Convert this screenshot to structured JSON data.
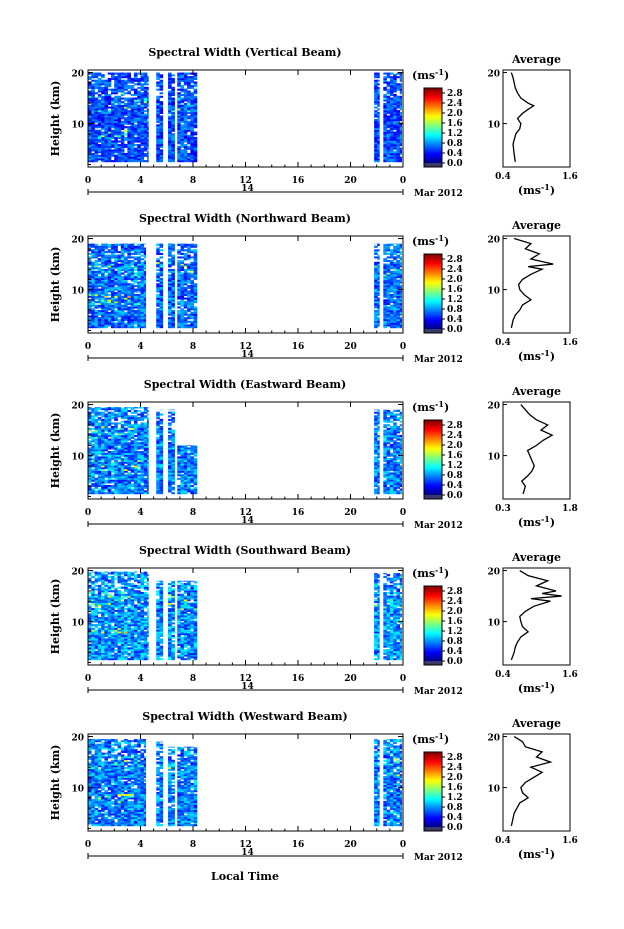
{
  "figure": {
    "xlabel": "Local Time",
    "date_label": "Mar 2012",
    "day_label": "14"
  },
  "chart_data": [
    {
      "type": "heatmap",
      "title": "Spectral Width (Vertical Beam)",
      "ylabel": "Height (km)",
      "x_ticks": [
        "0",
        "4",
        "8",
        "12",
        "16",
        "20",
        "0"
      ],
      "y_ticks": [
        "20",
        "10"
      ],
      "xlim": [
        0,
        24
      ],
      "ylim": [
        1.5,
        20.5
      ],
      "colorbar": {
        "unit": "(ms",
        "unit_exp": "-1",
        "unit_close": ")",
        "ticks": [
          "2.8",
          "2.4",
          "2.0",
          "1.6",
          "1.2",
          "0.8",
          "0.4",
          "0.0"
        ],
        "range": [
          0,
          3.0
        ]
      },
      "data_blocks": [
        {
          "x": [
            0,
            4.6
          ],
          "y": [
            2.5,
            20
          ]
        },
        {
          "x": [
            5.2,
            5.7
          ],
          "y": [
            2.5,
            20
          ]
        },
        {
          "x": [
            6.1,
            6.6
          ],
          "y": [
            2.5,
            20
          ]
        },
        {
          "x": [
            6.8,
            8.3
          ],
          "y": [
            2.5,
            20
          ]
        },
        {
          "x": [
            21.8,
            22.2
          ],
          "y": [
            2.5,
            20
          ]
        },
        {
          "x": [
            22.5,
            23.9
          ],
          "y": [
            2.5,
            20
          ]
        }
      ],
      "typical_width": 0.6,
      "average": {
        "title": "Average",
        "xlabel": "(ms",
        "xlabel_exp": "-1",
        "xlabel_close": ")",
        "x_ticks": [
          "0.4",
          "1.6"
        ],
        "xlim": [
          0.4,
          1.6
        ],
        "y_ticks": [
          "20",
          "10"
        ],
        "profile": [
          [
            2.5,
            0.62
          ],
          [
            4,
            0.6
          ],
          [
            6,
            0.58
          ],
          [
            8,
            0.63
          ],
          [
            9,
            0.7
          ],
          [
            10,
            0.72
          ],
          [
            11,
            0.66
          ],
          [
            12,
            0.75
          ],
          [
            12.8,
            0.85
          ],
          [
            13.5,
            0.95
          ],
          [
            14,
            0.85
          ],
          [
            15,
            0.72
          ],
          [
            16,
            0.66
          ],
          [
            17,
            0.62
          ],
          [
            18,
            0.6
          ],
          [
            19,
            0.58
          ],
          [
            20,
            0.55
          ]
        ]
      }
    },
    {
      "type": "heatmap",
      "title": "Spectral Width (Northward Beam)",
      "ylabel": "Height (km)",
      "x_ticks": [
        "0",
        "4",
        "8",
        "12",
        "16",
        "20",
        "0"
      ],
      "y_ticks": [
        "20",
        "10"
      ],
      "xlim": [
        0,
        24
      ],
      "ylim": [
        1.5,
        20.5
      ],
      "colorbar": {
        "unit": "(ms",
        "unit_exp": "-1",
        "unit_close": ")",
        "ticks": [
          "2.8",
          "2.4",
          "2.0",
          "1.6",
          "1.2",
          "0.8",
          "0.4",
          "0.0"
        ],
        "range": [
          0,
          3.0
        ]
      },
      "data_blocks": [
        {
          "x": [
            0,
            4.4
          ],
          "y": [
            2.5,
            19
          ]
        },
        {
          "x": [
            5.2,
            5.7
          ],
          "y": [
            2.5,
            19
          ]
        },
        {
          "x": [
            6.1,
            6.6
          ],
          "y": [
            2.5,
            19
          ]
        },
        {
          "x": [
            6.8,
            8.3
          ],
          "y": [
            2.5,
            19
          ]
        },
        {
          "x": [
            21.8,
            22.2
          ],
          "y": [
            2.5,
            19
          ]
        },
        {
          "x": [
            22.5,
            23.9
          ],
          "y": [
            2.5,
            19
          ]
        }
      ],
      "typical_width": 0.7,
      "average": {
        "title": "Average",
        "xlabel": "(ms",
        "xlabel_exp": "-1",
        "xlabel_close": ")",
        "x_ticks": [
          "0.4",
          "1.6"
        ],
        "xlim": [
          0.4,
          1.6
        ],
        "y_ticks": [
          "20",
          "10"
        ],
        "profile": [
          [
            2.5,
            0.55
          ],
          [
            4,
            0.58
          ],
          [
            5,
            0.62
          ],
          [
            6,
            0.7
          ],
          [
            7,
            0.75
          ],
          [
            8,
            0.9
          ],
          [
            9,
            0.78
          ],
          [
            10,
            0.7
          ],
          [
            11,
            0.68
          ],
          [
            12,
            0.75
          ],
          [
            13,
            0.9
          ],
          [
            14,
            1.1
          ],
          [
            14.5,
            0.85
          ],
          [
            15,
            1.3
          ],
          [
            16,
            0.9
          ],
          [
            17,
            1.05
          ],
          [
            18,
            0.8
          ],
          [
            19,
            0.9
          ],
          [
            20,
            0.6
          ]
        ]
      }
    },
    {
      "type": "heatmap",
      "title": "Spectral Width (Eastward Beam)",
      "ylabel": "Height (km)",
      "x_ticks": [
        "0",
        "4",
        "8",
        "12",
        "16",
        "20",
        "0"
      ],
      "y_ticks": [
        "20",
        "10"
      ],
      "xlim": [
        0,
        24
      ],
      "ylim": [
        1.5,
        20.5
      ],
      "colorbar": {
        "unit": "(ms",
        "unit_exp": "-1",
        "unit_close": ")",
        "ticks": [
          "2.8",
          "2.4",
          "2.0",
          "1.6",
          "1.2",
          "0.8",
          "0.4",
          "0.0"
        ],
        "range": [
          0,
          3.0
        ]
      },
      "data_blocks": [
        {
          "x": [
            0,
            4.6
          ],
          "y": [
            2.5,
            19.5
          ]
        },
        {
          "x": [
            5.2,
            5.7
          ],
          "y": [
            2.5,
            19
          ]
        },
        {
          "x": [
            6.1,
            6.6
          ],
          "y": [
            2.5,
            19
          ]
        },
        {
          "x": [
            6.8,
            8.3
          ],
          "y": [
            2.5,
            12
          ]
        },
        {
          "x": [
            21.8,
            22.2
          ],
          "y": [
            2.5,
            19
          ]
        },
        {
          "x": [
            22.5,
            23.9
          ],
          "y": [
            2.5,
            19
          ]
        }
      ],
      "typical_width": 0.75,
      "average": {
        "title": "Average",
        "xlabel": "(ms",
        "xlabel_exp": "-1",
        "xlabel_close": ")",
        "x_ticks": [
          "0.3",
          "1.8"
        ],
        "xlim": [
          0.3,
          1.8
        ],
        "y_ticks": [
          "20",
          "10"
        ],
        "profile": [
          [
            2.5,
            0.75
          ],
          [
            4,
            0.8
          ],
          [
            5,
            0.72
          ],
          [
            6,
            0.85
          ],
          [
            7,
            0.95
          ],
          [
            8,
            1.0
          ],
          [
            9,
            0.95
          ],
          [
            10,
            0.9
          ],
          [
            11,
            0.85
          ],
          [
            12,
            1.05
          ],
          [
            13,
            1.2
          ],
          [
            14,
            1.4
          ],
          [
            15,
            1.15
          ],
          [
            16,
            1.3
          ],
          [
            17,
            1.05
          ],
          [
            18,
            0.9
          ],
          [
            19,
            0.8
          ],
          [
            20,
            0.7
          ]
        ]
      }
    },
    {
      "type": "heatmap",
      "title": "Spectral Width (Southward Beam)",
      "ylabel": "Height (km)",
      "x_ticks": [
        "0",
        "4",
        "8",
        "12",
        "16",
        "20",
        "0"
      ],
      "y_ticks": [
        "20",
        "10"
      ],
      "xlim": [
        0,
        24
      ],
      "ylim": [
        1.5,
        20.5
      ],
      "colorbar": {
        "unit": "(ms",
        "unit_exp": "-1",
        "unit_close": ")",
        "ticks": [
          "2.8",
          "2.4",
          "2.0",
          "1.6",
          "1.2",
          "0.8",
          "0.4",
          "0.0"
        ],
        "range": [
          0,
          3.0
        ]
      },
      "data_blocks": [
        {
          "x": [
            0,
            4.6
          ],
          "y": [
            2.5,
            19.8
          ]
        },
        {
          "x": [
            5.2,
            5.7
          ],
          "y": [
            2.5,
            18
          ]
        },
        {
          "x": [
            6.1,
            6.6
          ],
          "y": [
            2.5,
            18
          ]
        },
        {
          "x": [
            6.8,
            8.3
          ],
          "y": [
            2.5,
            18
          ]
        },
        {
          "x": [
            21.8,
            22.2
          ],
          "y": [
            2.5,
            19.5
          ]
        },
        {
          "x": [
            22.5,
            23.9
          ],
          "y": [
            2.5,
            19.5
          ]
        }
      ],
      "typical_width": 0.8,
      "average": {
        "title": "Average",
        "xlabel": "(ms",
        "xlabel_exp": "-1",
        "xlabel_close": ")",
        "x_ticks": [
          "0.4",
          "1.6"
        ],
        "xlim": [
          0.4,
          1.6
        ],
        "y_ticks": [
          "20",
          "10"
        ],
        "profile": [
          [
            2.5,
            0.55
          ],
          [
            4,
            0.6
          ],
          [
            5,
            0.62
          ],
          [
            6,
            0.66
          ],
          [
            7,
            0.72
          ],
          [
            8,
            0.85
          ],
          [
            9,
            0.75
          ],
          [
            10,
            0.72
          ],
          [
            11,
            0.7
          ],
          [
            12,
            0.8
          ],
          [
            13,
            0.95
          ],
          [
            14,
            1.25
          ],
          [
            14.5,
            0.9
          ],
          [
            15,
            1.45
          ],
          [
            15.5,
            1.1
          ],
          [
            16,
            1.35
          ],
          [
            17,
            1.0
          ],
          [
            18,
            1.2
          ],
          [
            19,
            0.85
          ],
          [
            20,
            0.7
          ]
        ]
      }
    },
    {
      "type": "heatmap",
      "title": "Spectral Width (Westward Beam)",
      "ylabel": "Height (km)",
      "x_ticks": [
        "0",
        "4",
        "8",
        "12",
        "16",
        "20",
        "0"
      ],
      "y_ticks": [
        "20",
        "10"
      ],
      "xlim": [
        0,
        24
      ],
      "ylim": [
        1.5,
        20.5
      ],
      "colorbar": {
        "unit": "(ms",
        "unit_exp": "-1",
        "unit_close": ")",
        "ticks": [
          "2.8",
          "2.4",
          "2.0",
          "1.6",
          "1.2",
          "0.8",
          "0.4",
          "0.0"
        ],
        "range": [
          0,
          3.0
        ]
      },
      "data_blocks": [
        {
          "x": [
            0,
            4.4
          ],
          "y": [
            2.5,
            19.5
          ]
        },
        {
          "x": [
            5.2,
            5.7
          ],
          "y": [
            2.5,
            19
          ]
        },
        {
          "x": [
            6.1,
            6.6
          ],
          "y": [
            2.5,
            18
          ]
        },
        {
          "x": [
            6.8,
            8.3
          ],
          "y": [
            2.5,
            18
          ]
        },
        {
          "x": [
            21.8,
            22.2
          ],
          "y": [
            2.5,
            19.5
          ]
        },
        {
          "x": [
            22.5,
            23.9
          ],
          "y": [
            2.5,
            19.5
          ]
        }
      ],
      "typical_width": 0.75,
      "average": {
        "title": "Average",
        "xlabel": "(ms",
        "xlabel_exp": "-1",
        "xlabel_close": ")",
        "x_ticks": [
          "0.4",
          "1.6"
        ],
        "xlim": [
          0.4,
          1.6
        ],
        "y_ticks": [
          "20",
          "10"
        ],
        "profile": [
          [
            2.5,
            0.55
          ],
          [
            4,
            0.58
          ],
          [
            5,
            0.6
          ],
          [
            6,
            0.65
          ],
          [
            7,
            0.7
          ],
          [
            8,
            0.85
          ],
          [
            9,
            0.75
          ],
          [
            10,
            0.72
          ],
          [
            11,
            0.8
          ],
          [
            12,
            0.95
          ],
          [
            13,
            1.1
          ],
          [
            14,
            0.9
          ],
          [
            15,
            1.25
          ],
          [
            16,
            1.0
          ],
          [
            17,
            1.1
          ],
          [
            18,
            0.8
          ],
          [
            19,
            0.75
          ],
          [
            20,
            0.6
          ]
        ]
      }
    }
  ]
}
